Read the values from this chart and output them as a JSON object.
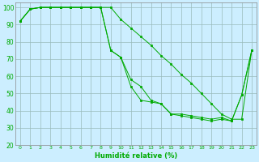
{
  "xlabel": "Humidité relative (%)",
  "background_color": "#cceeff",
  "grid_color": "#99bbbb",
  "line_color": "#00aa00",
  "x": [
    0,
    1,
    2,
    3,
    4,
    5,
    6,
    7,
    8,
    9,
    10,
    11,
    12,
    13,
    14,
    15,
    16,
    17,
    18,
    19,
    20,
    21,
    22,
    23
  ],
  "y_top": [
    92,
    99,
    100,
    100,
    100,
    100,
    100,
    100,
    100,
    100,
    93,
    88,
    83,
    78,
    72,
    67,
    61,
    56,
    50,
    44,
    38,
    35,
    35,
    75
  ],
  "y_mid": [
    92,
    99,
    100,
    100,
    100,
    100,
    100,
    100,
    100,
    75,
    71,
    58,
    54,
    46,
    44,
    38,
    38,
    37,
    36,
    35,
    36,
    34,
    49,
    75
  ],
  "y_bot": [
    92,
    99,
    100,
    100,
    100,
    100,
    100,
    100,
    100,
    75,
    71,
    54,
    46,
    45,
    44,
    38,
    37,
    36,
    35,
    34,
    35,
    34,
    49,
    75
  ],
  "xlim": [
    -0.5,
    23.5
  ],
  "ylim": [
    20,
    103
  ],
  "yticks": [
    20,
    30,
    40,
    50,
    60,
    70,
    80,
    90,
    100
  ],
  "xticks": [
    0,
    1,
    2,
    3,
    4,
    5,
    6,
    7,
    8,
    9,
    10,
    11,
    12,
    13,
    14,
    15,
    16,
    17,
    18,
    19,
    20,
    21,
    22,
    23
  ],
  "figsize": [
    3.2,
    2.0
  ],
  "dpi": 100
}
